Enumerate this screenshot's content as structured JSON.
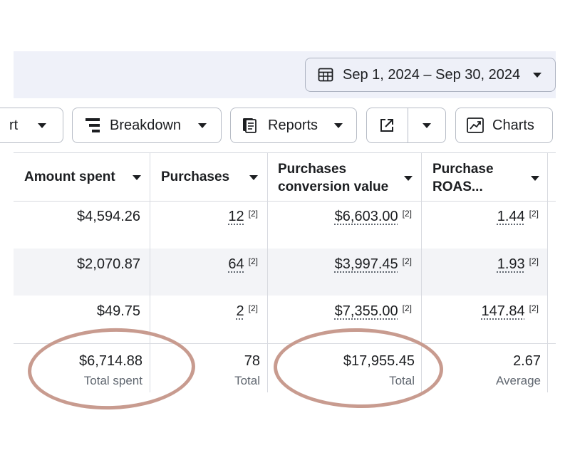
{
  "toolbar": {
    "date_range": "Sep 1, 2024 – Sep 30, 2024",
    "partial_label": "rt",
    "breakdown_label": "Breakdown",
    "reports_label": "Reports",
    "charts_label": "Charts"
  },
  "table": {
    "columns": [
      {
        "label": "Amount spent"
      },
      {
        "label": "Purchases"
      },
      {
        "label_line1": "Purchases",
        "label_line2": "conversion value"
      },
      {
        "label_line1": "Purchase",
        "label_line2": "ROAS..."
      }
    ],
    "rows": [
      {
        "amount_spent": "$4,594.26",
        "purchases": "12",
        "purchases_note": "[2]",
        "conversion_value": "$6,603.00",
        "conversion_note": "[2]",
        "roas": "1.44",
        "roas_note": "[2]"
      },
      {
        "amount_spent": "$2,070.87",
        "purchases": "64",
        "purchases_note": "[2]",
        "conversion_value": "$3,997.45",
        "conversion_note": "[2]",
        "roas": "1.93",
        "roas_note": "[2]"
      },
      {
        "amount_spent": "$49.75",
        "purchases": "2",
        "purchases_note": "[2]",
        "conversion_value": "$7,355.00",
        "conversion_note": "[2]",
        "roas": "147.84",
        "roas_note": "[2]"
      }
    ],
    "totals": {
      "amount_spent": "$6,714.88",
      "amount_spent_label": "Total spent",
      "purchases": "78",
      "purchases_label": "Total",
      "conversion_value": "$17,955.45",
      "conversion_value_label": "Total",
      "roas": "2.67",
      "roas_label": "Average"
    }
  },
  "colors": {
    "annotation_oval": "#c89b8f",
    "header_background": "#eff1f9",
    "row_stripe": "#f3f4f7"
  },
  "icons": [
    "calendar-icon",
    "breakdown-icon",
    "reports-icon",
    "export-icon",
    "charts-icon",
    "caret-down-icon"
  ]
}
